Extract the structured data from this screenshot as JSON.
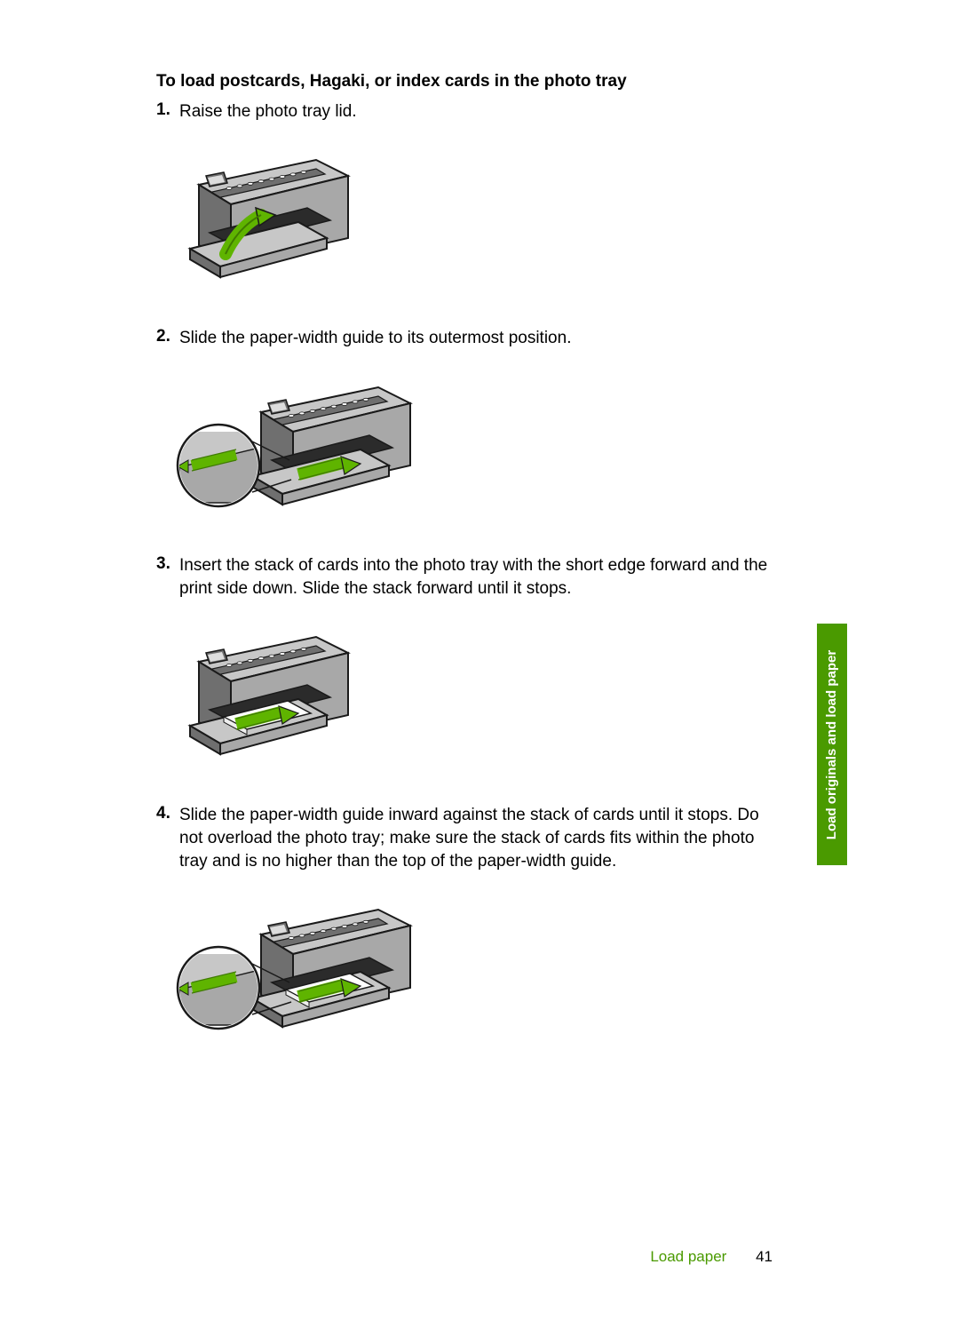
{
  "heading": "To load postcards, Hagaki, or index cards in the photo tray",
  "steps": [
    {
      "num": "1.",
      "text": "Raise the photo tray lid."
    },
    {
      "num": "2.",
      "text": "Slide the paper-width guide to its outermost position."
    },
    {
      "num": "3.",
      "text": "Insert the stack of cards into the photo tray with the short edge forward and the print side down. Slide the stack forward until it stops."
    },
    {
      "num": "4.",
      "text": "Slide the paper-width guide inward against the stack of cards until it stops.\nDo not overload the photo tray; make sure the stack of cards fits within the photo tray and is no higher than the top of the paper-width guide."
    }
  ],
  "sideTab": "Load originals and load paper",
  "footer": {
    "label": "Load paper",
    "page": "41"
  },
  "figures": [
    {
      "hasCallout": false,
      "hasPaper": false,
      "arrowMode": "up"
    },
    {
      "hasCallout": true,
      "hasPaper": false,
      "arrowMode": "right"
    },
    {
      "hasCallout": false,
      "hasPaper": true,
      "arrowMode": "right"
    },
    {
      "hasCallout": true,
      "hasPaper": true,
      "arrowMode": "right"
    }
  ],
  "colors": {
    "accent": "#5fb400",
    "accentDark": "#3f7a00",
    "bodyLight": "#c7c7c7",
    "bodyMid": "#a8a8a8",
    "bodyDark": "#6f6f6f",
    "outline": "#1a1a1a"
  }
}
